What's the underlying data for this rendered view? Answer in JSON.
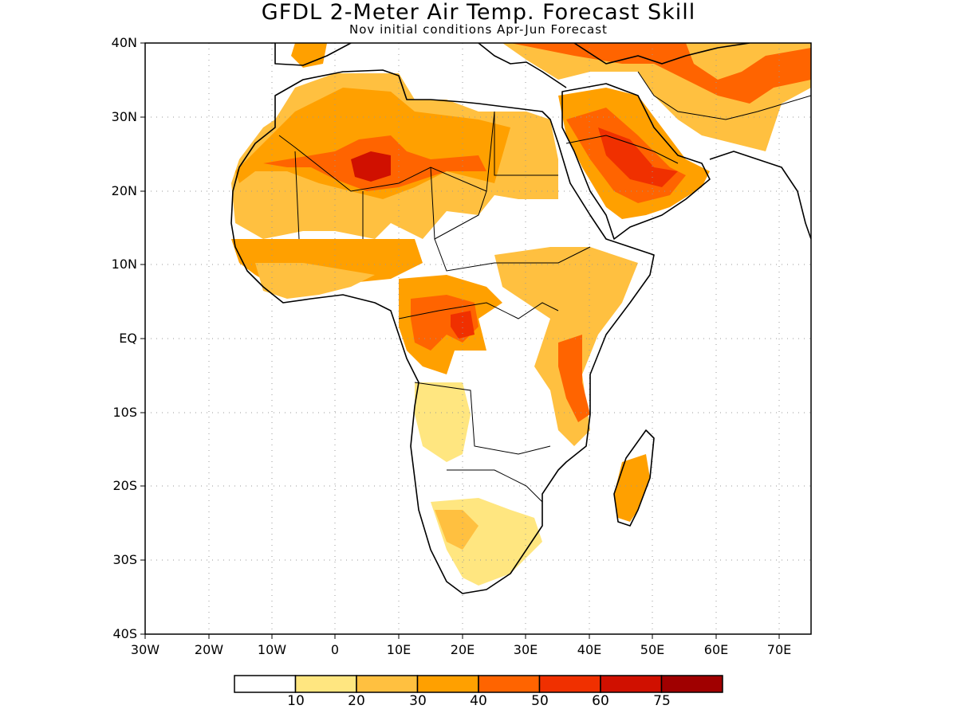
{
  "title": "GFDL 2-Meter Air Temp. Forecast Skill",
  "subtitle": "Nov initial conditions  Apr-Jun Forecast",
  "lat_ticks": [
    "40N",
    "30N",
    "20N",
    "10N",
    "EQ",
    "10S",
    "20S",
    "30S",
    "40S"
  ],
  "lon_ticks": [
    "30W",
    "20W",
    "10W",
    "0",
    "10E",
    "20E",
    "30E",
    "40E",
    "50E",
    "60E",
    "70E"
  ],
  "colorbar": {
    "colors": [
      "#ffffff",
      "#ffe680",
      "#ffc040",
      "#ffa000",
      "#ff6400",
      "#f03000",
      "#d01000",
      "#a00000"
    ],
    "labels": [
      "10",
      "20",
      "30",
      "40",
      "50",
      "60",
      "75"
    ]
  },
  "map": {
    "lon_range": [
      -30,
      75
    ],
    "lat_range": [
      -40,
      40
    ],
    "grid_lines": "dotted",
    "land_outline_color": "#000000"
  }
}
